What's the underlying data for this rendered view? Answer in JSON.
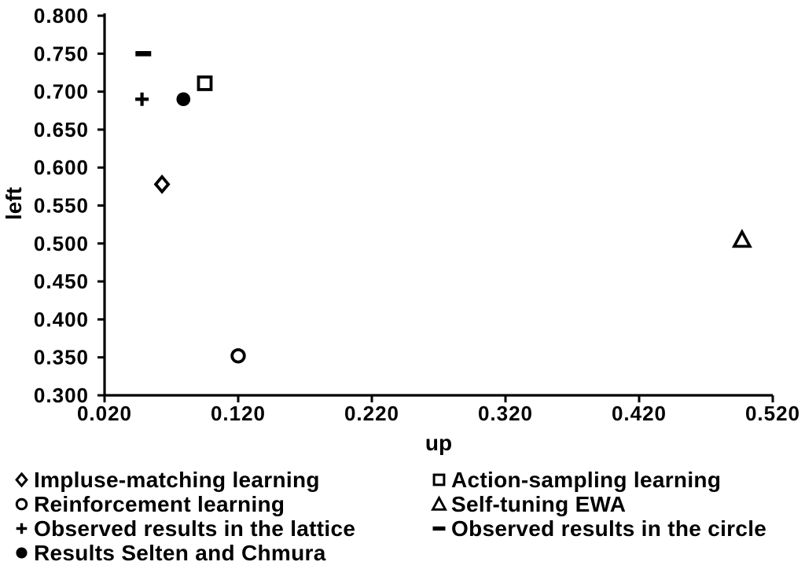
{
  "figure": {
    "background_color": "#ffffff",
    "ink_color": "#000000"
  },
  "chart_data": {
    "type": "scatter",
    "title": "",
    "xlabel": "up",
    "ylabel": "left",
    "xlim": [
      0.02,
      0.52
    ],
    "ylim": [
      0.3,
      0.8
    ],
    "x_ticks": [
      0.02,
      0.12,
      0.22,
      0.32,
      0.42,
      0.52
    ],
    "y_ticks": [
      0.3,
      0.35,
      0.4,
      0.45,
      0.5,
      0.55,
      0.6,
      0.65,
      0.7,
      0.75,
      0.8
    ],
    "tick_label_decimals": 3,
    "grid": false,
    "legend_position": "below-two-columns",
    "series": [
      {
        "name": "Impluse-matching learning",
        "marker": "open-diamond",
        "points": [
          {
            "x": 0.063,
            "y": 0.578
          }
        ]
      },
      {
        "name": "Action-sampling learning",
        "marker": "open-square",
        "points": [
          {
            "x": 0.095,
            "y": 0.711
          }
        ]
      },
      {
        "name": "Reinforcement learning",
        "marker": "open-circle",
        "points": [
          {
            "x": 0.12,
            "y": 0.352
          }
        ]
      },
      {
        "name": "Self-tuning EWA",
        "marker": "open-triangle",
        "points": [
          {
            "x": 0.497,
            "y": 0.505
          }
        ]
      },
      {
        "name": "Observed results in the lattice",
        "marker": "plus",
        "points": [
          {
            "x": 0.048,
            "y": 0.69
          }
        ]
      },
      {
        "name": "Observed results in the circle",
        "marker": "dash",
        "points": [
          {
            "x": 0.049,
            "y": 0.75
          }
        ]
      },
      {
        "name": "Results Selten and Chmura",
        "marker": "filled-circle",
        "points": [
          {
            "x": 0.079,
            "y": 0.69
          }
        ]
      }
    ],
    "legend_columns": [
      [
        0,
        2,
        4,
        6
      ],
      [
        1,
        3,
        5
      ]
    ]
  }
}
